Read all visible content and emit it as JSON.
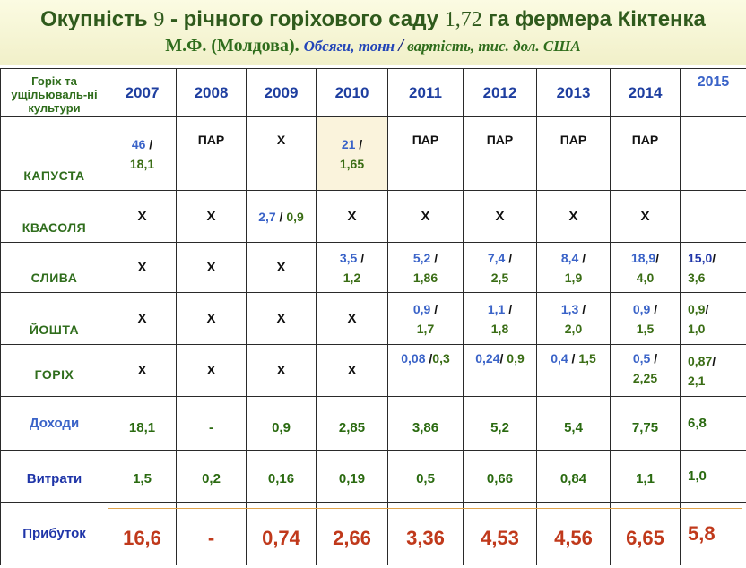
{
  "title": {
    "line1_a": "Окупність ",
    "line1_num1": "9",
    "line1_b": " - річного горіхового саду ",
    "line1_num2": "1,72",
    "line1_c": " га фермера Кіктенка",
    "line2_a": "М.Ф. (Молдова). ",
    "line2_units1": "Обсяги, тонн ",
    "line2_slash": "/",
    "line2_units2": " вартість, тис. дол. США"
  },
  "table": {
    "corner_label": "Горіх та ущільюваль-ні культури",
    "years": [
      "2007",
      "2008",
      "2009",
      "2010",
      "2011",
      "2012",
      "2013",
      "2014",
      "2015"
    ],
    "rows": {
      "cabbage": {
        "name": "КАПУСТА",
        "c2007_vol": "46",
        "c2007_sep": " /",
        "c2007_val": "18,1",
        "c2008": "ПАР",
        "c2009": "Х",
        "c2010_vol": "21",
        "c2010_sep": " /",
        "c2010_val": "1,65",
        "c2011": "ПАР",
        "c2012": "ПАР",
        "c2013": "ПАР",
        "c2014": "ПАР",
        "c2015": ""
      },
      "beans": {
        "name": "КВАСОЛЯ",
        "c2007": "Х",
        "c2008": "Х",
        "c2009_vol": "2,7",
        "c2009_sep": " / ",
        "c2009_val": "0,9",
        "c2010": "Х",
        "c2011": "Х",
        "c2012": "Х",
        "c2013": "Х",
        "c2014": "Х",
        "c2015": ""
      },
      "plum": {
        "name": "СЛИВА",
        "c2007": "Х",
        "c2008": "Х",
        "c2009": "Х",
        "c2010_vol": "3,5",
        "c2010_val": "1,2",
        "c2011_vol": "5,2",
        "c2011_val": "1,86",
        "c2012_vol": "7,4",
        "c2012_val": "2,5",
        "c2013_vol": "8,4",
        "c2013_val": "1,9",
        "c2014_vol": "18,9",
        "c2014_val": "4,0",
        "c2015_vol": "15,0",
        "c2015_val": "3,6"
      },
      "yoshta": {
        "name": "ЙОШТА",
        "c2007": "Х",
        "c2008": "Х",
        "c2009": "Х",
        "c2010": "Х",
        "c2011_vol": "0,9",
        "c2011_val": "1,7",
        "c2012_vol": "1,1",
        "c2012_val": "1,8",
        "c2013_vol": "1,3",
        "c2013_val": "2,0",
        "c2014_vol": "0,9",
        "c2014_val": "1,5",
        "c2015_vol": "0,9",
        "c2015_val": "1,0"
      },
      "walnut": {
        "name": "ГОРІХ",
        "c2007": "Х",
        "c2008": "Х",
        "c2009": "Х",
        "c2010": "Х",
        "c2011_vol": "0,08",
        "c2011_val": "0,3",
        "c2012_vol": "0,24",
        "c2012_val": "0,9",
        "c2013_vol": "0,4",
        "c2013_val": "1,5",
        "c2014_vol": "0,5",
        "c2014_val": "2,25",
        "c2015_vol": "0,87",
        "c2015_val": "2,1"
      },
      "income": {
        "name": "Доходи",
        "values": [
          "18,1",
          "-",
          "0,9",
          "2,85",
          "3,86",
          "5,2",
          "5,4",
          "7,75",
          "6,8"
        ]
      },
      "costs": {
        "name": "Витрати",
        "values": [
          "1,5",
          "0,2",
          "0,16",
          "0,19",
          "0,5",
          "0,66",
          "0,84",
          "1,1",
          "1,0"
        ]
      },
      "profit": {
        "name": "Прибуток",
        "values": [
          "16,6",
          "-",
          "0,74",
          "2,66",
          "3,36",
          "4,53",
          "4,56",
          "6,65",
          "5,8"
        ]
      }
    }
  }
}
